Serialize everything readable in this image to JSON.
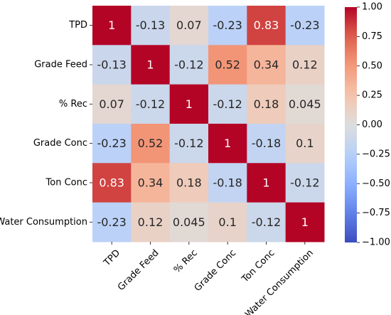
{
  "chart_data": {
    "type": "heatmap",
    "title": "",
    "xlabel": "",
    "ylabel": "",
    "rows": [
      "TPD",
      "Grade Feed",
      "% Rec",
      "Grade Conc",
      "Ton Conc",
      "Water Consumption"
    ],
    "columns": [
      "TPD",
      "Grade Feed",
      "% Rec",
      "Grade Conc",
      "Ton Conc",
      "Water Consumption"
    ],
    "values": [
      [
        1,
        -0.13,
        0.07,
        -0.23,
        0.83,
        -0.23
      ],
      [
        -0.13,
        1,
        -0.12,
        0.52,
        0.34,
        0.12
      ],
      [
        0.07,
        -0.12,
        1,
        -0.12,
        0.18,
        0.045
      ],
      [
        -0.23,
        0.52,
        -0.12,
        1,
        -0.18,
        0.1
      ],
      [
        0.83,
        0.34,
        0.18,
        -0.18,
        1,
        -0.12
      ],
      [
        -0.23,
        0.12,
        0.045,
        0.1,
        -0.12,
        1
      ]
    ],
    "cell_labels": [
      [
        "1",
        "-0.13",
        "0.07",
        "-0.23",
        "0.83",
        "-0.23"
      ],
      [
        "-0.13",
        "1",
        "-0.12",
        "0.52",
        "0.34",
        "0.12"
      ],
      [
        "0.07",
        "-0.12",
        "1",
        "-0.12",
        "0.18",
        "0.045"
      ],
      [
        "-0.23",
        "0.52",
        "-0.12",
        "1",
        "-0.18",
        "0.1"
      ],
      [
        "0.83",
        "0.34",
        "0.18",
        "-0.18",
        "1",
        "-0.12"
      ],
      [
        "-0.23",
        "0.12",
        "0.045",
        "0.1",
        "-0.12",
        "1"
      ]
    ],
    "colormap": "coolwarm",
    "vmin": -1.0,
    "vmax": 1.0,
    "colorbar": {
      "ticks": [
        1.0,
        0.75,
        0.5,
        0.25,
        0.0,
        -0.25,
        -0.5,
        -0.75,
        -1.0
      ],
      "tick_labels": [
        "1.00",
        "0.75",
        "0.50",
        "0.25",
        "0.00",
        "−0.25",
        "−0.50",
        "−0.75",
        "−1.00"
      ]
    },
    "colors": {
      "low": "#3b4cc0",
      "mid": "#dddddd",
      "high": "#b40426"
    }
  }
}
